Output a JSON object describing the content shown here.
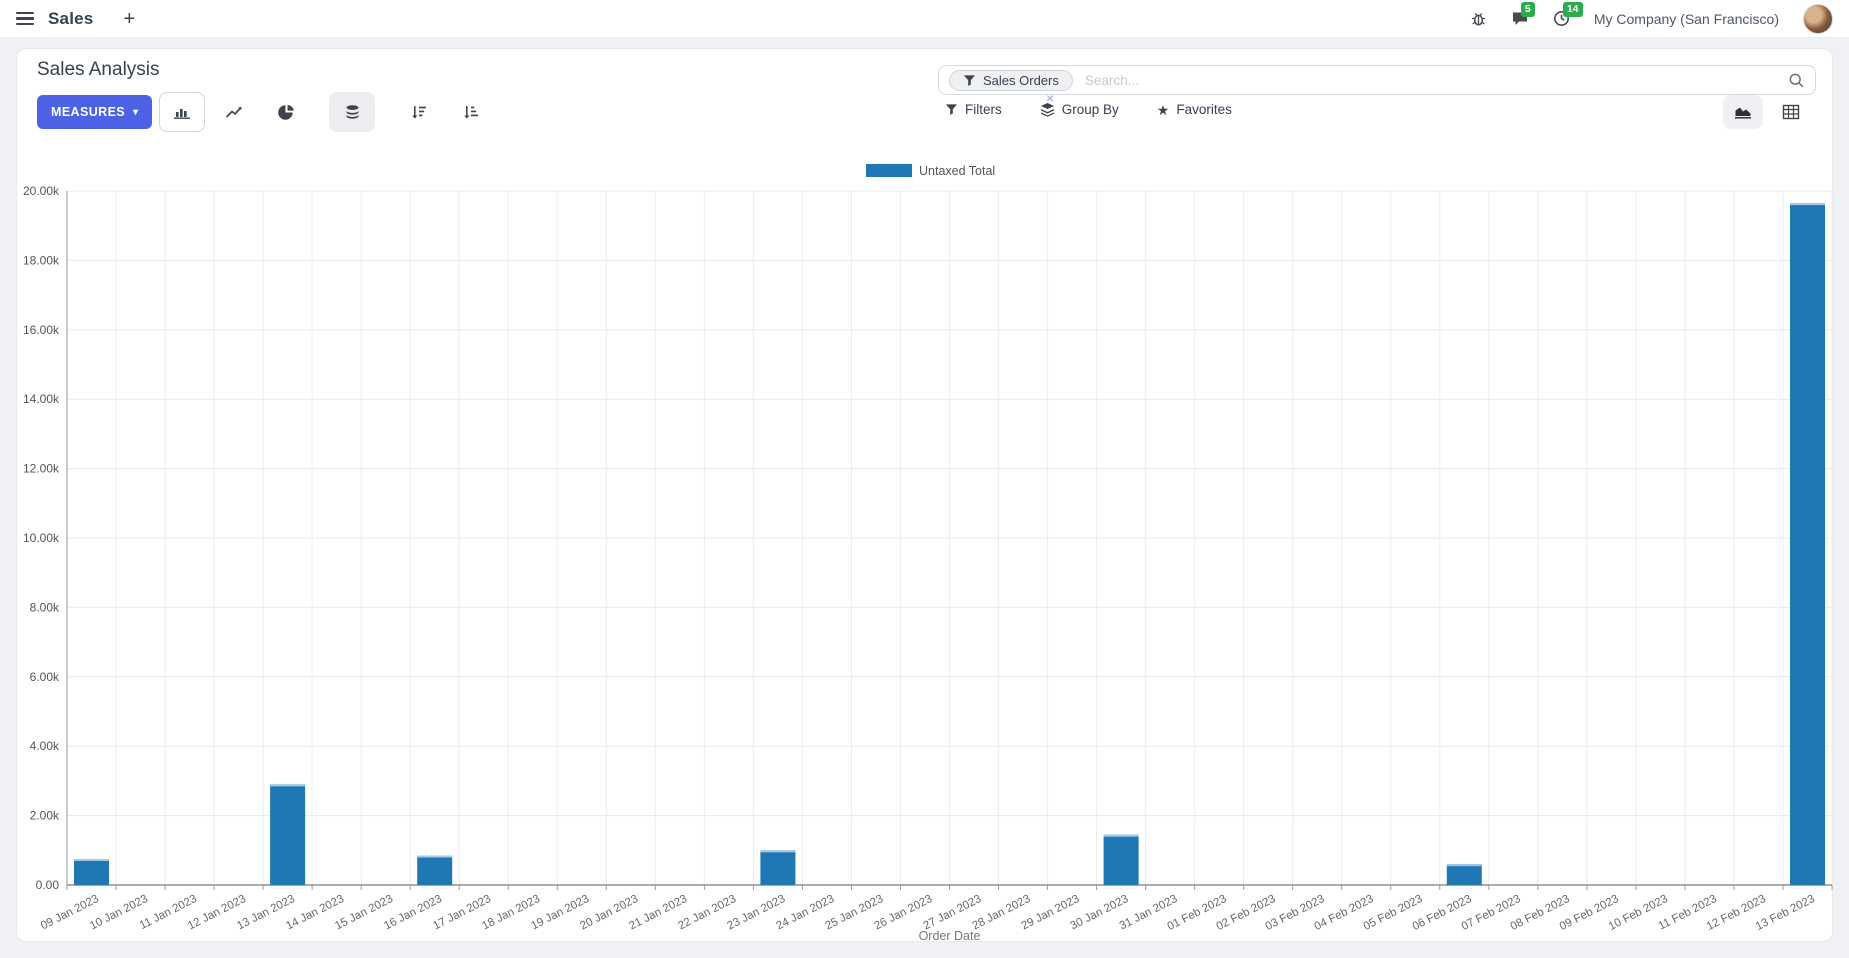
{
  "nav": {
    "app_name": "Sales",
    "new_tab_label": "+",
    "message_count": "5",
    "activity_count": "14",
    "company": "My Company (San Francisco)",
    "badge_color": "#2bab4b"
  },
  "control_panel": {
    "title": "Sales Analysis",
    "measures_label": "MEASURES",
    "search": {
      "facet_label": "Sales Orders",
      "placeholder": "Search...",
      "remove_label": "×"
    },
    "filters_label": "Filters",
    "group_by_label": "Group By",
    "favorites_label": "Favorites"
  },
  "chart_data": {
    "type": "bar",
    "title": "",
    "xlabel": "Order Date",
    "ylabel": "",
    "ylim": [
      0,
      20000
    ],
    "ytick_step": 2000,
    "ytick_labels": [
      "0.00",
      "2.00k",
      "4.00k",
      "6.00k",
      "8.00k",
      "10.00k",
      "12.00k",
      "14.00k",
      "16.00k",
      "18.00k",
      "20.00k"
    ],
    "grid": true,
    "legend_position": "top",
    "bar_color": "#1f77b4",
    "bar_top_color": "#a6cbe5",
    "categories": [
      "09 Jan 2023",
      "10 Jan 2023",
      "11 Jan 2023",
      "12 Jan 2023",
      "13 Jan 2023",
      "14 Jan 2023",
      "15 Jan 2023",
      "16 Jan 2023",
      "17 Jan 2023",
      "18 Jan 2023",
      "19 Jan 2023",
      "20 Jan 2023",
      "21 Jan 2023",
      "22 Jan 2023",
      "23 Jan 2023",
      "24 Jan 2023",
      "25 Jan 2023",
      "26 Jan 2023",
      "27 Jan 2023",
      "28 Jan 2023",
      "29 Jan 2023",
      "30 Jan 2023",
      "31 Jan 2023",
      "01 Feb 2023",
      "02 Feb 2023",
      "03 Feb 2023",
      "04 Feb 2023",
      "05 Feb 2023",
      "06 Feb 2023",
      "07 Feb 2023",
      "08 Feb 2023",
      "09 Feb 2023",
      "10 Feb 2023",
      "11 Feb 2023",
      "12 Feb 2023",
      "13 Feb 2023"
    ],
    "series": [
      {
        "name": "Untaxed Total",
        "values": [
          750,
          0,
          0,
          0,
          2900,
          0,
          0,
          850,
          0,
          0,
          0,
          0,
          0,
          0,
          1000,
          0,
          0,
          0,
          0,
          0,
          0,
          1450,
          0,
          0,
          0,
          0,
          0,
          0,
          600,
          0,
          0,
          0,
          0,
          0,
          0,
          19650
        ]
      }
    ]
  }
}
